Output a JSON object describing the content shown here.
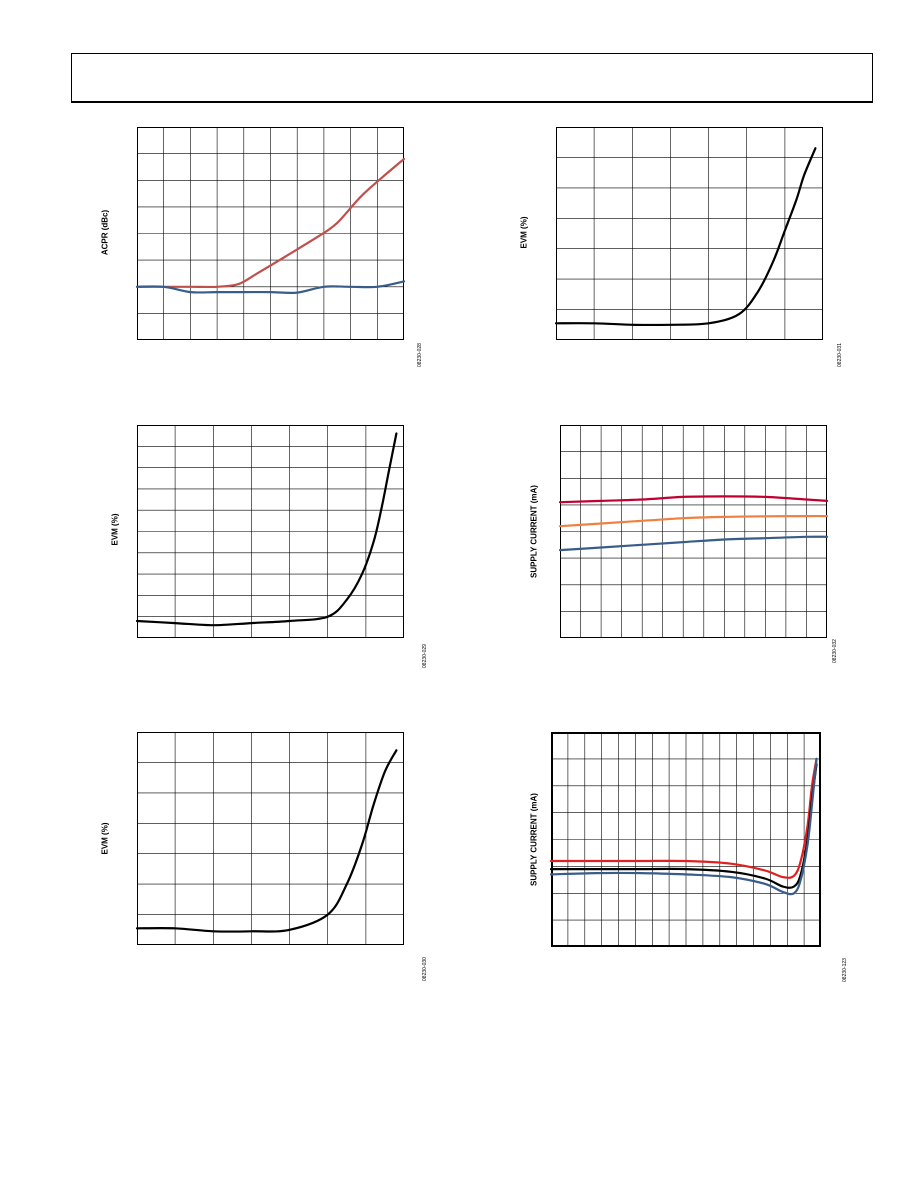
{
  "chart_data": [
    {
      "type": "line",
      "ylabel": "ACPR (dBc)",
      "figure_id": "08230-028",
      "grid": true,
      "xlim": [
        0,
        10
      ],
      "ylim": [
        0,
        8
      ],
      "series": [
        {
          "color": "#c0504d",
          "x": [
            0,
            1,
            2,
            3,
            3.8,
            4.5,
            5.5,
            6.8,
            7.5,
            8.5,
            10
          ],
          "y": [
            2,
            2,
            2,
            2,
            2.1,
            2.5,
            3.1,
            3.9,
            4.4,
            5.5,
            6.8
          ]
        },
        {
          "color": "#385d8a",
          "x": [
            0,
            1,
            2,
            3,
            4,
            5,
            6,
            7,
            8,
            9,
            10
          ],
          "y": [
            2,
            2,
            1.8,
            1.8,
            1.8,
            1.8,
            1.78,
            2,
            2,
            2,
            2.2
          ]
        }
      ]
    },
    {
      "type": "line",
      "ylabel": "EVM (%)",
      "figure_id": "08230-031",
      "grid": true,
      "xlim": [
        0,
        7
      ],
      "ylim": [
        0,
        7
      ],
      "series": [
        {
          "color": "#000000",
          "x": [
            0,
            1,
            2,
            3,
            4,
            4.8,
            5.3,
            5.7,
            6,
            6.3,
            6.5,
            6.8
          ],
          "y": [
            0.55,
            0.55,
            0.5,
            0.5,
            0.55,
            0.85,
            1.6,
            2.6,
            3.6,
            4.6,
            5.4,
            6.3
          ]
        }
      ]
    },
    {
      "type": "line",
      "ylabel": "EVM (%)",
      "figure_id": "08230-029",
      "grid": true,
      "xlim": [
        0,
        7
      ],
      "ylim": [
        0,
        10
      ],
      "series": [
        {
          "color": "#000000",
          "x": [
            0,
            1,
            2,
            3,
            4,
            5,
            5.5,
            5.9,
            6.2,
            6.4,
            6.6,
            6.8
          ],
          "y": [
            0.8,
            0.7,
            0.6,
            0.7,
            0.8,
            1.0,
            1.8,
            3.0,
            4.5,
            6.0,
            7.8,
            9.6
          ]
        }
      ]
    },
    {
      "type": "line",
      "ylabel": "SUPPLY CURRENT (mA)",
      "figure_id": "08230-032",
      "grid": true,
      "xlim": [
        0,
        13
      ],
      "ylim": [
        0,
        8
      ],
      "series": [
        {
          "color": "#c00030",
          "x": [
            0,
            2,
            4,
            6,
            8,
            10,
            12,
            13
          ],
          "y": [
            5.1,
            5.15,
            5.2,
            5.3,
            5.32,
            5.3,
            5.2,
            5.15
          ]
        },
        {
          "color": "#f08040",
          "x": [
            0,
            2,
            4,
            6,
            8,
            10,
            12,
            13
          ],
          "y": [
            4.2,
            4.3,
            4.4,
            4.5,
            4.55,
            4.57,
            4.58,
            4.58
          ]
        },
        {
          "color": "#385d8a",
          "x": [
            0,
            2,
            4,
            6,
            8,
            10,
            12,
            13
          ],
          "y": [
            3.3,
            3.4,
            3.5,
            3.6,
            3.7,
            3.75,
            3.8,
            3.8
          ]
        }
      ]
    },
    {
      "type": "line",
      "ylabel": "EVM (%)",
      "figure_id": "08230-030",
      "grid": true,
      "xlim": [
        0,
        7
      ],
      "ylim": [
        0,
        7
      ],
      "series": [
        {
          "color": "#000000",
          "x": [
            0,
            1,
            2,
            3,
            4,
            5,
            5.5,
            5.9,
            6.2,
            6.5,
            6.8
          ],
          "y": [
            0.55,
            0.55,
            0.45,
            0.45,
            0.5,
            1.0,
            2.0,
            3.3,
            4.6,
            5.7,
            6.4
          ]
        }
      ]
    },
    {
      "type": "line",
      "ylabel": "SUPPLY CURRENT (mA)",
      "figure_id": "08230-123",
      "grid": true,
      "xlim": [
        0,
        12
      ],
      "ylim": [
        0,
        8
      ],
      "series": [
        {
          "color": "#e02020",
          "x": [
            0,
            2,
            4,
            6,
            8,
            9.5,
            10.3,
            10.8,
            11.1,
            11.4,
            11.6,
            11.8
          ],
          "y": [
            3.2,
            3.2,
            3.2,
            3.2,
            3.1,
            2.85,
            2.6,
            2.65,
            3.2,
            4.5,
            6.0,
            7.0
          ]
        },
        {
          "color": "#000000",
          "x": [
            0,
            2,
            4,
            6,
            8,
            9.5,
            10.3,
            10.8,
            11.1,
            11.4,
            11.6,
            11.8
          ],
          "y": [
            2.9,
            2.9,
            2.9,
            2.9,
            2.8,
            2.55,
            2.25,
            2.25,
            2.7,
            4.0,
            5.5,
            6.8
          ]
        },
        {
          "color": "#385d8a",
          "x": [
            0,
            2,
            4,
            6,
            8,
            9.5,
            10.3,
            10.8,
            11.1,
            11.4,
            11.6,
            11.8
          ],
          "y": [
            2.7,
            2.75,
            2.75,
            2.7,
            2.6,
            2.35,
            2.05,
            2.0,
            2.5,
            3.8,
            5.3,
            7.0
          ]
        }
      ]
    }
  ]
}
